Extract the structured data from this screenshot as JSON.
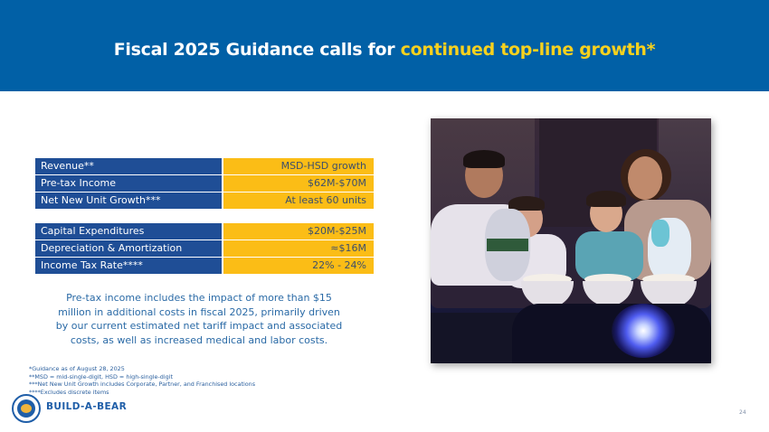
{
  "header": {
    "title_plain": "Fiscal 2025 Guidance calls for ",
    "title_highlight": "continued top-line growth*",
    "background_color": "#0160a6",
    "highlight_color": "#f7d11e"
  },
  "guidance_table_1": [
    {
      "label": "Revenue**",
      "value": "MSD-HSD growth"
    },
    {
      "label": "Pre-tax Income",
      "value": "$62M-$70M"
    },
    {
      "label": "Net New Unit Growth***",
      "value": "At least 60 units"
    }
  ],
  "guidance_table_2": [
    {
      "label": "Capital Expenditures",
      "value": "$20M-$25M"
    },
    {
      "label": "Depreciation & Amortization",
      "value": "≈$16M"
    },
    {
      "label": "Income Tax Rate****",
      "value": "22% - 24%"
    }
  ],
  "colors": {
    "label_bg": "#1f4e96",
    "value_bg": "#fbbd16"
  },
  "note": "Pre-tax income includes the impact of more than $15 million in additional costs in fiscal 2025, primarily driven by our current estimated net tariff impact and associated costs, as well as increased medical and labor costs.",
  "footnotes": [
    "*Guidance as of August 28, 2025",
    "**MSD = mid-single-digit, HSD = high-single-digit",
    "***Net New Unit Growth includes Corporate, Partner, and Franchised locations",
    "****Excludes discrete items"
  ],
  "brand": {
    "name": "BUILD-A-BEAR",
    "logo_icon": "build-a-bear-logo-icon"
  },
  "photo": {
    "description": "Family of four smiling on a sofa holding plush toys with bowls of popcorn and a projector light in the foreground"
  },
  "page_number": "24"
}
